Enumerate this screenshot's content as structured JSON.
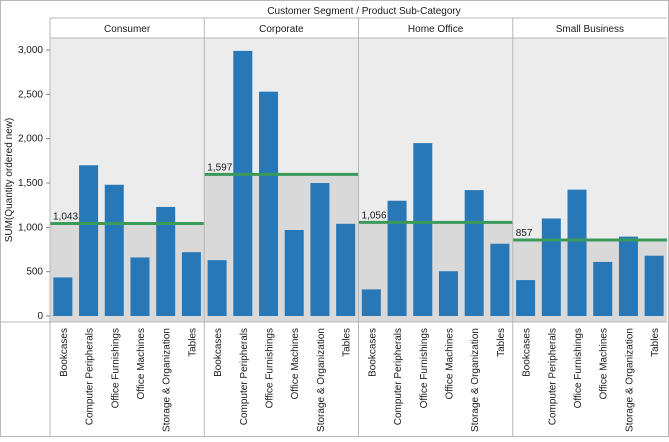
{
  "chart_data": {
    "type": "bar",
    "title": "Customer Segment / Product Sub-Category",
    "ylabel": "SUM(Quantity ordered new)",
    "xlabel": "",
    "ylim": [
      0,
      3100
    ],
    "yticks": [
      0,
      500,
      1000,
      1500,
      2000,
      2500,
      3000
    ],
    "ytick_labels": [
      "0",
      "500",
      "1,000",
      "1,500",
      "2,000",
      "2,500",
      "3,000"
    ],
    "categories": [
      "Bookcases",
      "Computer Peripherals",
      "Office Furnishings",
      "Office Machines",
      "Storage & Organization",
      "Tables"
    ],
    "grid": false,
    "colors": {
      "bar": "#2878b8",
      "reference_line": "#3a9a5a",
      "band": "#d9d9d9",
      "panel_border": "#b8b8b8",
      "text": "#1a1a1a"
    },
    "panels": [
      {
        "name": "Consumer",
        "values": [
          435,
          1700,
          1480,
          660,
          1230,
          720
        ],
        "reference_value": 1043,
        "reference_label": "1,043"
      },
      {
        "name": "Corporate",
        "values": [
          630,
          2990,
          2530,
          970,
          1500,
          1040
        ],
        "reference_value": 1597,
        "reference_label": "1,597"
      },
      {
        "name": "Home Office",
        "values": [
          300,
          1300,
          1950,
          505,
          1420,
          815
        ],
        "reference_value": 1056,
        "reference_label": "1,056"
      },
      {
        "name": "Small Business",
        "values": [
          405,
          1100,
          1425,
          610,
          895,
          680
        ],
        "reference_value": 857,
        "reference_label": "857"
      }
    ]
  }
}
